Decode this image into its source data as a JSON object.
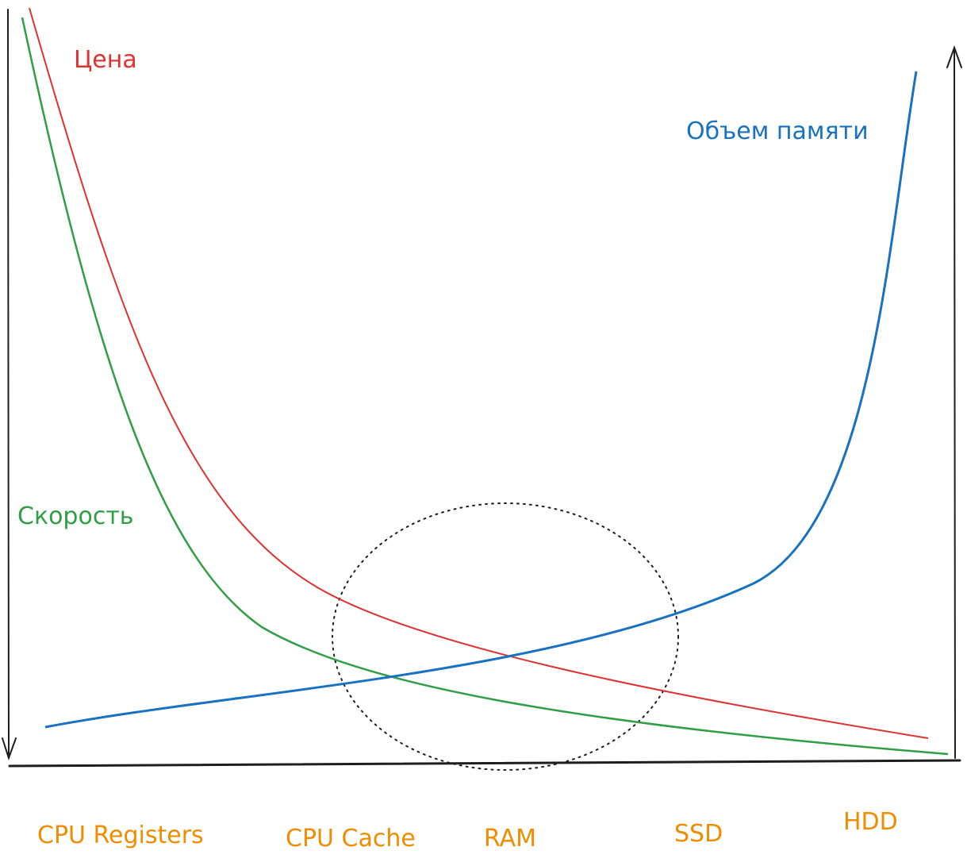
{
  "curves": [
    {
      "label": "Цена"
    },
    {
      "label": "Скорость"
    },
    {
      "label": "Объем памяти"
    }
  ],
  "categories": [
    "CPU Registers",
    "CPU Cache",
    "RAM",
    "SSD",
    "HDD"
  ]
}
